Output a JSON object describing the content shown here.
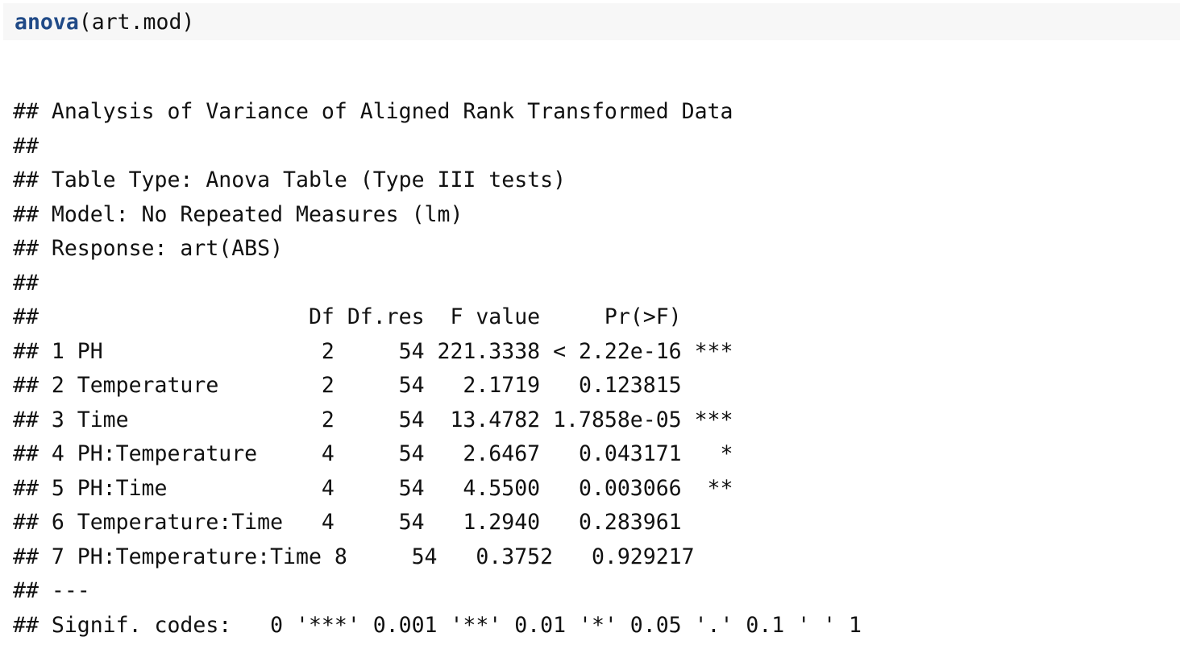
{
  "code": {
    "function": "anova",
    "args": "(art.mod)"
  },
  "output": {
    "lines": [
      "## Analysis of Variance of Aligned Rank Transformed Data",
      "##",
      "## Table Type: Anova Table (Type III tests)",
      "## Model: No Repeated Measures (lm)",
      "## Response: art(ABS)",
      "##",
      "##                     Df Df.res  F value     Pr(>F)",
      "## 1 PH                 2     54 221.3338 < 2.22e-16 ***",
      "## 2 Temperature        2     54   2.1719   0.123815",
      "## 3 Time               2     54  13.4782 1.7858e-05 ***",
      "## 4 PH:Temperature     4     54   2.6467   0.043171   *",
      "## 5 PH:Time            4     54   4.5500   0.003066  **",
      "## 6 Temperature:Time   4     54   1.2940   0.283961",
      "## 7 PH:Temperature:Time 8     54   0.3752   0.929217",
      "## ---",
      "## Signif. codes:   0 '***' 0.001 '**' 0.01 '*' 0.05 '.' 0.1 ' ' 1"
    ]
  }
}
